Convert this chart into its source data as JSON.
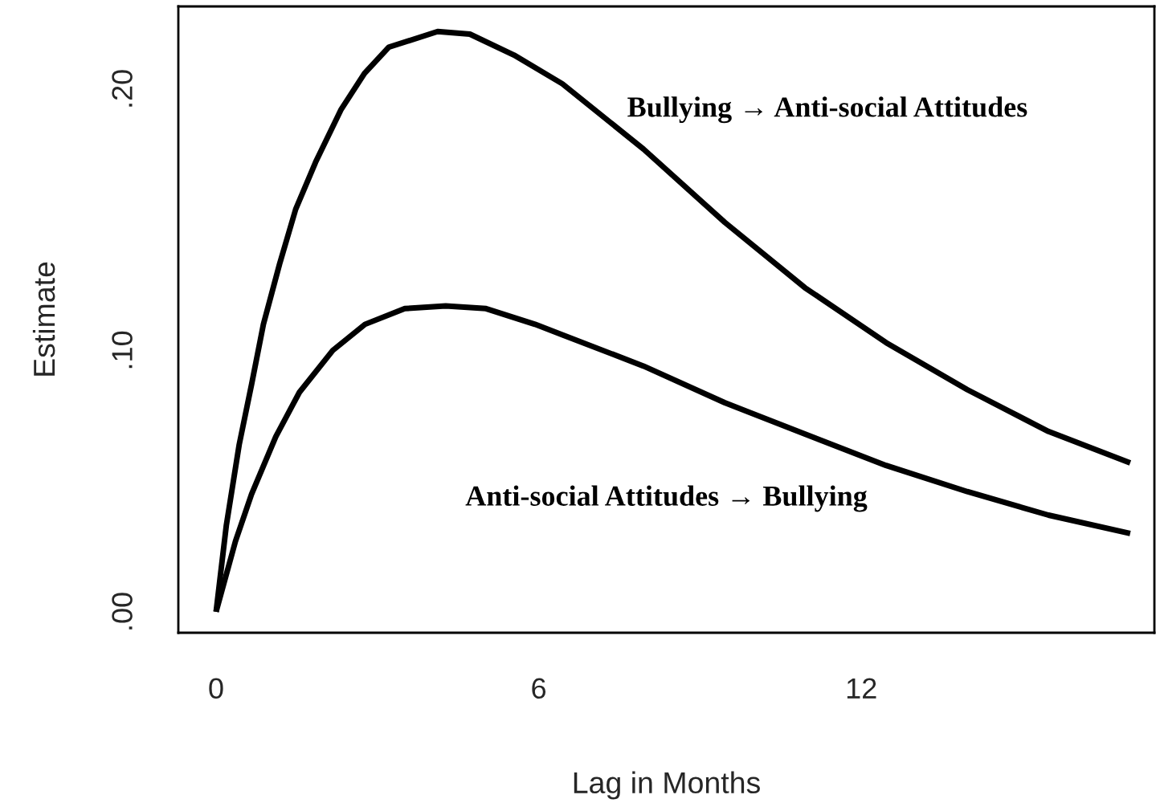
{
  "chart_data": {
    "type": "line",
    "xlabel": "Lag in Months",
    "ylabel": "Estimate",
    "xlim": [
      -0.702,
      17.45
    ],
    "ylim": [
      -0.008,
      0.2316
    ],
    "xticks": [
      0,
      6,
      12
    ],
    "yticks": [
      {
        "value": 0,
        "label": ".00"
      },
      {
        "value": 0.1,
        "label": ".10"
      },
      {
        "value": 0.2,
        "label": ".20"
      }
    ],
    "grid": false,
    "legend": false,
    "marker": "none",
    "line_style": "solid",
    "series": [
      {
        "name": "Bullying → Anti-social Attitudes",
        "color": "#000000",
        "x": [
          0,
          0.19,
          0.43,
          0.66,
          0.88,
          1.18,
          1.48,
          1.85,
          2.32,
          2.76,
          3.21,
          4.12,
          4.72,
          5.54,
          6.44,
          7.95,
          9.46,
          10.95,
          12.46,
          13.97,
          15.48,
          17
        ],
        "values": [
          0,
          0.033,
          0.064,
          0.087,
          0.11,
          0.133,
          0.154,
          0.172,
          0.192,
          0.206,
          0.216,
          0.222,
          0.221,
          0.213,
          0.202,
          0.177,
          0.149,
          0.124,
          0.103,
          0.085,
          0.069,
          0.057
        ]
      },
      {
        "name": "Anti-social Attitudes → Bullying",
        "color": "#000000",
        "x": [
          0,
          0.36,
          0.66,
          1.11,
          1.55,
          2.17,
          2.77,
          3.51,
          4.27,
          5.02,
          5.93,
          6.44,
          7.95,
          9.46,
          10.95,
          12.46,
          13.97,
          15.48,
          17
        ],
        "values": [
          0,
          0.027,
          0.045,
          0.067,
          0.084,
          0.1,
          0.11,
          0.116,
          0.117,
          0.116,
          0.11,
          0.106,
          0.094,
          0.08,
          0.068,
          0.056,
          0.046,
          0.037,
          0.03
        ]
      }
    ]
  }
}
